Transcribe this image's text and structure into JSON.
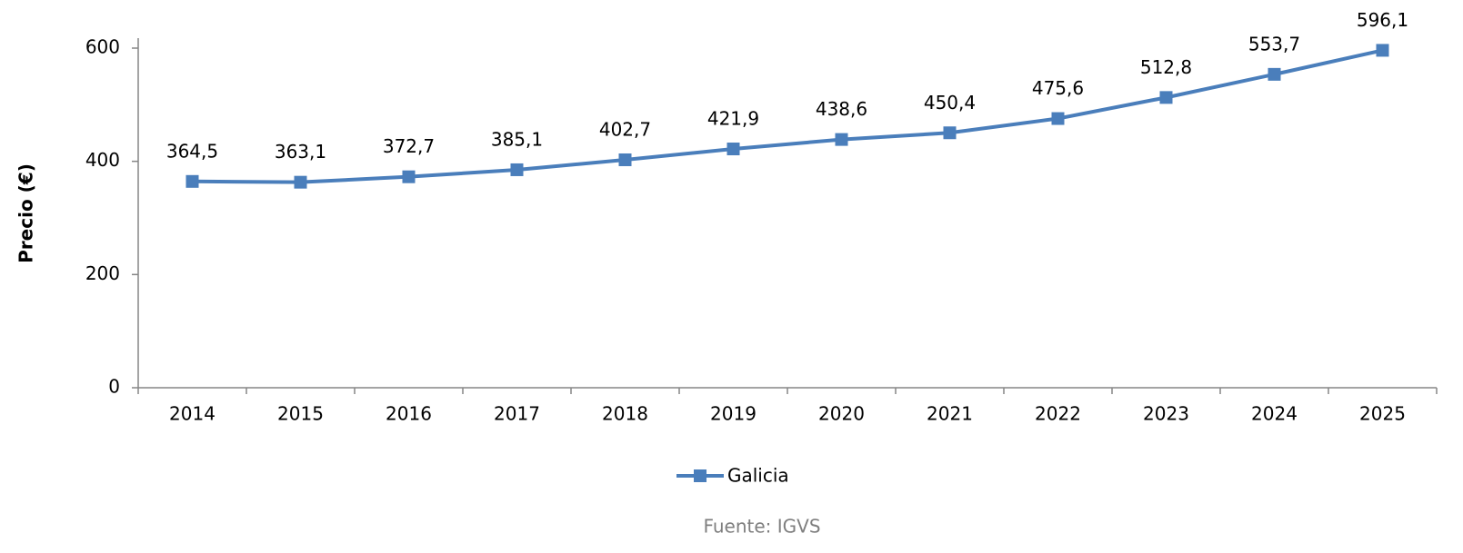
{
  "chart_data": {
    "type": "line",
    "categories": [
      "2014",
      "2015",
      "2016",
      "2017",
      "2018",
      "2019",
      "2020",
      "2021",
      "2022",
      "2023",
      "2024",
      "2025"
    ],
    "series": [
      {
        "name": "Galicia",
        "color": "#4a7ebb",
        "values": [
          364.5,
          363.1,
          372.7,
          385.1,
          402.7,
          421.9,
          438.6,
          450.4,
          475.6,
          512.8,
          553.7,
          596.1
        ],
        "value_labels": [
          "364,5",
          "363,1",
          "372,7",
          "385,1",
          "402,7",
          "421,9",
          "438,6",
          "450,4",
          "475,6",
          "512,8",
          "553,7",
          "596,1"
        ]
      }
    ],
    "y_label": "Precio (€)",
    "ylim": [
      0,
      600
    ],
    "yticks": [
      0,
      200,
      400,
      600
    ],
    "source": "Fuente: IGVS",
    "legend": "bottom"
  }
}
